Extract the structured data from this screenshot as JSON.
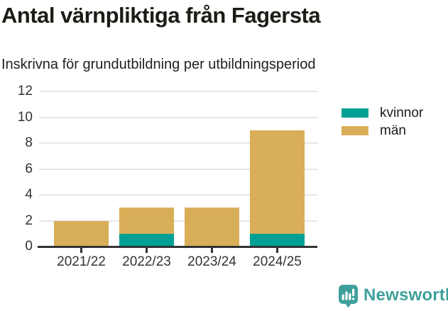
{
  "chart_data": {
    "type": "bar",
    "stacked": true,
    "title": "Antal värnpliktiga från Fagersta",
    "subtitle": "Inskrivna för grundutbildning per utbildningsperiod",
    "categories": [
      "2021/22",
      "2022/23",
      "2023/24",
      "2024/25"
    ],
    "series": [
      {
        "name": "kvinnor",
        "color": "#00a094",
        "values": [
          0,
          1,
          0,
          1
        ]
      },
      {
        "name": "män",
        "color": "#d9ae58",
        "values": [
          2,
          2,
          3,
          8
        ]
      }
    ],
    "totals": [
      2,
      3,
      3,
      9
    ],
    "xlabel": "",
    "ylabel": "",
    "ylim": [
      0,
      12
    ],
    "yticks": [
      0,
      2,
      4,
      6,
      8,
      10,
      12
    ],
    "grid": true,
    "grid_color": "#e7e7e7",
    "axis_color": "#333333",
    "tick_label_color": "#333333",
    "legend_position": "top-right"
  },
  "footer": {
    "brand": "Newsworthy",
    "brand_color": "#3fa09b"
  }
}
